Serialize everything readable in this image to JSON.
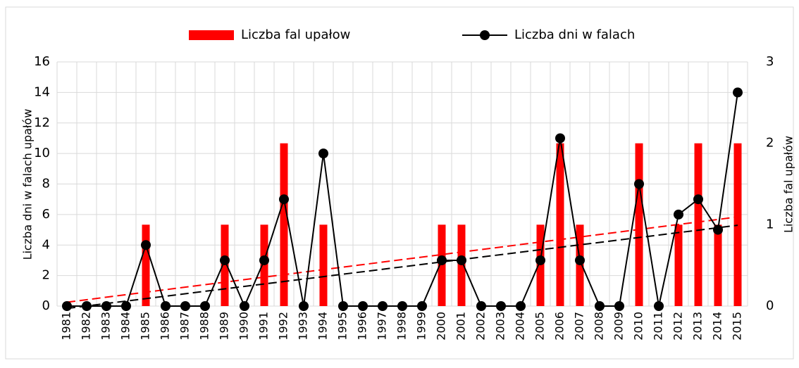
{
  "chart_data": {
    "type": "bar_line",
    "categories": [
      "1981",
      "1982",
      "1983",
      "1984",
      "1985",
      "1986",
      "1987",
      "1988",
      "1989",
      "1990",
      "1991",
      "1992",
      "1993",
      "1994",
      "1995",
      "1996",
      "1997",
      "1998",
      "1999",
      "2000",
      "2001",
      "2002",
      "2003",
      "2004",
      "2005",
      "2006",
      "2007",
      "2008",
      "2009",
      "2010",
      "2011",
      "2012",
      "2013",
      "2014",
      "2015"
    ],
    "series": [
      {
        "name": "Liczba fal upałow",
        "type": "bar",
        "axis": "y2",
        "color": "#ff0000",
        "trendline": true,
        "values": [
          0,
          0,
          0,
          0,
          1,
          0,
          0,
          0,
          1,
          0,
          1,
          2,
          0,
          1,
          0,
          0,
          0,
          0,
          0,
          1,
          1,
          0,
          0,
          0,
          1,
          2,
          1,
          0,
          0,
          2,
          0,
          1,
          2,
          1,
          2
        ]
      },
      {
        "name": "Liczba dni w falach",
        "type": "line",
        "axis": "y",
        "color": "#000000",
        "trendline": true,
        "values": [
          0,
          0,
          0,
          0,
          4,
          0,
          0,
          0,
          3,
          0,
          3,
          7,
          0,
          10,
          0,
          0,
          0,
          0,
          0,
          3,
          3,
          0,
          0,
          0,
          3,
          11,
          3,
          0,
          0,
          8,
          0,
          6,
          7,
          5,
          14
        ]
      }
    ],
    "ylabel": "Liczba dni w falach upałów",
    "y2label": "Liczba fal upałów",
    "ylim": [
      0,
      16
    ],
    "yticks": [
      0,
      2,
      4,
      6,
      8,
      10,
      12,
      14,
      16
    ],
    "y2lim": [
      0,
      3
    ],
    "y2ticks": [
      0,
      1,
      2,
      3
    ],
    "grid": true,
    "legend": "top"
  }
}
